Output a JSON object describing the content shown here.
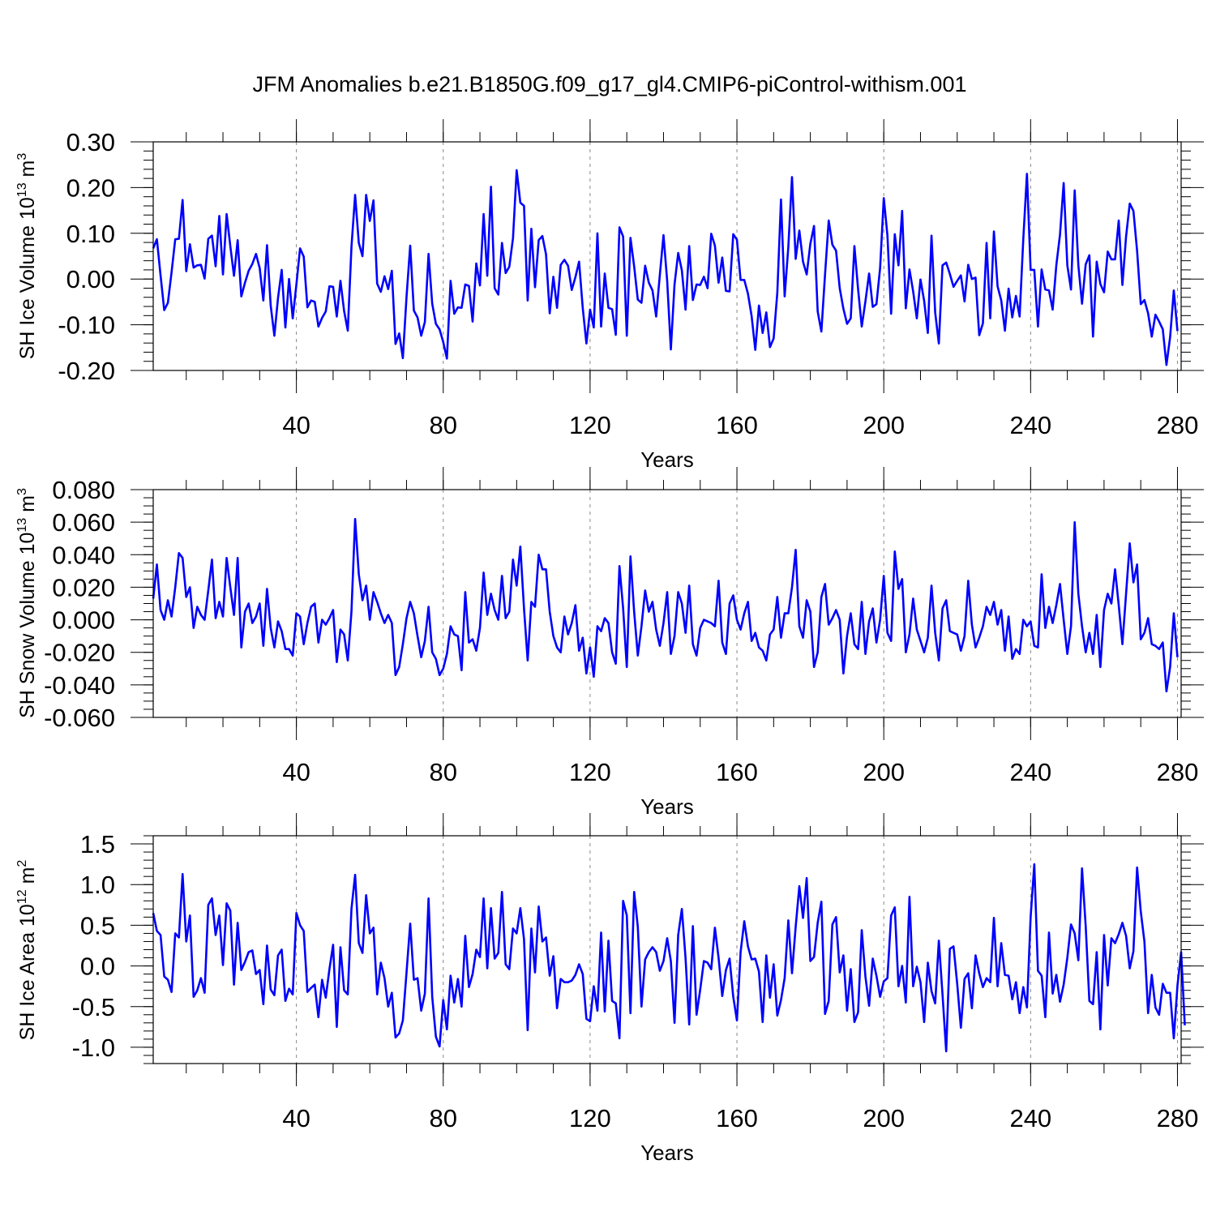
{
  "title": "JFM Anomalies b.e21.B1850G.f09_g17_gl4.CMIP6-piControl-withism.001",
  "colors": {
    "series": "#0000ff",
    "frame": "#000000",
    "grid": "#888888"
  },
  "chart_data": [
    {
      "type": "line",
      "ylabel": {
        "text": "SH Ice Volume 10",
        "exp": "13",
        "unit": " m",
        "unit_exp": "3"
      },
      "xlabel": "Years",
      "xlim": [
        1,
        281
      ],
      "ylim": [
        -0.2,
        0.3
      ],
      "xticks": [
        40,
        80,
        120,
        160,
        200,
        240,
        280
      ],
      "xtick_labels": [
        "40",
        "80",
        "120",
        "160",
        "200",
        "240",
        "280"
      ],
      "yticks": [
        -0.2,
        -0.1,
        0.0,
        0.1,
        0.2,
        0.3
      ],
      "ytick_labels": [
        "-0.20",
        "-0.10",
        "0.00",
        "0.10",
        "0.20",
        "0.30"
      ],
      "grid": "vertical dashed at major x ticks",
      "x_start": 1,
      "values": [
        0.067,
        0.087,
        0.008,
        -0.068,
        -0.052,
        0.015,
        0.087,
        0.088,
        0.173,
        0.017,
        0.076,
        0.025,
        0.03,
        0.031,
        0.001,
        0.088,
        0.095,
        0.028,
        0.138,
        0.01,
        0.142,
        0.072,
        0.007,
        0.085,
        -0.038,
        -0.008,
        0.018,
        0.033,
        0.055,
        0.024,
        -0.047,
        0.074,
        -0.058,
        -0.124,
        -0.041,
        0.02,
        -0.106,
        0.0,
        -0.086,
        -0.012,
        0.067,
        0.049,
        -0.062,
        -0.047,
        -0.05,
        -0.104,
        -0.085,
        -0.071,
        -0.016,
        -0.017,
        -0.082,
        -0.004,
        -0.07,
        -0.113,
        0.07,
        0.184,
        0.079,
        0.05,
        0.184,
        0.127,
        0.172,
        -0.01,
        -0.028,
        0.006,
        -0.022,
        0.018,
        -0.142,
        -0.119,
        -0.173,
        -0.039,
        0.073,
        -0.069,
        -0.084,
        -0.124,
        -0.094,
        0.055,
        -0.054,
        -0.098,
        -0.11,
        -0.138,
        -0.174,
        -0.004,
        -0.076,
        -0.062,
        -0.063,
        -0.012,
        -0.015,
        -0.093,
        0.034,
        -0.014,
        0.142,
        0.007,
        0.202,
        -0.02,
        -0.034,
        0.079,
        0.013,
        0.027,
        0.089,
        0.238,
        0.167,
        0.16,
        -0.047,
        0.11,
        -0.018,
        0.085,
        0.094,
        0.054,
        -0.075,
        0.005,
        -0.063,
        0.031,
        0.042,
        0.029,
        -0.024,
        0.004,
        0.038,
        -0.063,
        -0.141,
        -0.067,
        -0.106,
        0.1,
        -0.104,
        0.012,
        -0.063,
        -0.066,
        -0.122,
        0.113,
        0.093,
        -0.124,
        0.09,
        0.028,
        -0.045,
        -0.052,
        0.029,
        -0.008,
        -0.025,
        -0.082,
        0.009,
        0.096,
        -0.004,
        -0.154,
        -0.012,
        0.057,
        0.019,
        -0.067,
        0.072,
        -0.046,
        -0.012,
        -0.013,
        0.005,
        -0.02,
        0.099,
        0.073,
        -0.008,
        0.047,
        -0.026,
        -0.027,
        0.098,
        0.086,
        -0.002,
        -0.002,
        -0.032,
        -0.081,
        -0.155,
        -0.058,
        -0.118,
        -0.073,
        -0.149,
        -0.13,
        -0.03,
        0.174,
        -0.038,
        0.07,
        0.223,
        0.044,
        0.106,
        0.038,
        0.01,
        0.077,
        0.116,
        -0.071,
        -0.115,
        0.01,
        0.128,
        0.075,
        0.062,
        -0.02,
        -0.065,
        -0.098,
        -0.086,
        0.072,
        -0.022,
        -0.104,
        -0.049,
        0.012,
        -0.061,
        -0.055,
        0.024,
        0.177,
        0.095,
        -0.076,
        0.098,
        0.03,
        0.149,
        -0.064,
        0.021,
        -0.027,
        -0.086,
        -0.001,
        -0.048,
        -0.118,
        0.095,
        -0.073,
        -0.141,
        0.03,
        0.036,
        0.011,
        -0.017,
        -0.004,
        0.008,
        -0.049,
        0.031,
        0.0,
        0.003,
        -0.123,
        -0.097,
        0.079,
        -0.086,
        0.104,
        -0.016,
        -0.047,
        -0.113,
        -0.021,
        -0.084,
        -0.037,
        -0.082,
        0.087,
        0.23,
        0.02,
        0.02,
        -0.104,
        0.021,
        -0.023,
        -0.025,
        -0.067,
        0.03,
        0.097,
        0.21,
        0.03,
        -0.023,
        0.194,
        0.03,
        -0.054,
        0.032,
        0.052,
        -0.126,
        0.038,
        -0.011,
        -0.029,
        0.06,
        0.043,
        0.043,
        0.128,
        -0.013,
        0.093,
        0.165,
        0.149,
        0.062,
        -0.055,
        -0.046,
        -0.075,
        -0.126,
        -0.078,
        -0.093,
        -0.11,
        -0.188,
        -0.127,
        -0.025,
        -0.114
      ]
    },
    {
      "type": "line",
      "ylabel": {
        "text": "SH Snow Volume 10",
        "exp": "13",
        "unit": " m",
        "unit_exp": "3"
      },
      "xlabel": "Years",
      "xlim": [
        1,
        281
      ],
      "ylim": [
        -0.06,
        0.08
      ],
      "xticks": [
        40,
        80,
        120,
        160,
        200,
        240,
        280
      ],
      "xtick_labels": [
        "40",
        "80",
        "120",
        "160",
        "200",
        "240",
        "280"
      ],
      "yticks": [
        -0.06,
        -0.04,
        -0.02,
        0.0,
        0.02,
        0.04,
        0.06,
        0.08
      ],
      "ytick_labels": [
        "-0.060",
        "-0.040",
        "-0.020",
        "0.000",
        "0.020",
        "0.040",
        "0.060",
        "0.080"
      ],
      "grid": "vertical dashed at major x ticks",
      "x_start": 1,
      "values": [
        0.013,
        0.034,
        0.006,
        0.0,
        0.012,
        0.002,
        0.02,
        0.041,
        0.038,
        0.014,
        0.02,
        -0.005,
        0.008,
        0.003,
        0.0,
        0.018,
        0.037,
        0.001,
        0.011,
        0.002,
        0.038,
        0.02,
        0.003,
        0.038,
        -0.017,
        0.005,
        0.01,
        -0.002,
        0.002,
        0.01,
        -0.016,
        0.019,
        -0.005,
        -0.017,
        -0.001,
        -0.007,
        -0.018,
        -0.018,
        -0.022,
        0.004,
        0.002,
        -0.015,
        -0.002,
        0.008,
        0.01,
        -0.014,
        0.0,
        -0.003,
        0.001,
        0.006,
        -0.026,
        -0.006,
        -0.009,
        -0.025,
        0.005,
        0.062,
        0.028,
        0.012,
        0.021,
        0.0,
        0.017,
        0.011,
        0.004,
        -0.002,
        0.003,
        -0.002,
        -0.034,
        -0.029,
        -0.015,
        0.001,
        0.011,
        0.004,
        -0.01,
        -0.023,
        -0.013,
        0.008,
        -0.02,
        -0.024,
        -0.034,
        -0.03,
        -0.021,
        -0.004,
        -0.009,
        -0.01,
        -0.031,
        0.017,
        -0.014,
        -0.012,
        -0.019,
        -0.005,
        0.029,
        0.003,
        0.016,
        0.006,
        0.0,
        0.027,
        0.001,
        0.005,
        0.037,
        0.021,
        0.045,
        0.007,
        -0.025,
        0.011,
        0.008,
        0.04,
        0.031,
        0.031,
        0.005,
        -0.01,
        -0.017,
        -0.02,
        0.002,
        -0.009,
        -0.002,
        0.009,
        -0.019,
        -0.011,
        -0.033,
        -0.017,
        -0.035,
        -0.004,
        -0.007,
        0.001,
        -0.002,
        -0.02,
        -0.027,
        0.033,
        0.007,
        -0.029,
        0.039,
        0.005,
        -0.022,
        -0.004,
        0.018,
        0.005,
        0.011,
        -0.006,
        -0.016,
        -0.002,
        0.017,
        -0.021,
        -0.01,
        0.017,
        0.01,
        -0.008,
        0.021,
        -0.015,
        -0.022,
        -0.005,
        0.0,
        -0.001,
        -0.002,
        -0.004,
        0.024,
        -0.014,
        -0.021,
        0.01,
        0.015,
        0.0,
        -0.006,
        0.004,
        0.011,
        -0.013,
        -0.008,
        -0.017,
        -0.019,
        -0.025,
        -0.009,
        -0.006,
        0.014,
        -0.011,
        0.004,
        0.004,
        0.02,
        0.043,
        -0.004,
        -0.011,
        0.012,
        0.005,
        -0.029,
        -0.02,
        0.014,
        0.022,
        -0.003,
        0.001,
        0.006,
        0.0,
        -0.033,
        -0.01,
        0.004,
        -0.015,
        -0.018,
        0.011,
        -0.021,
        -0.001,
        0.007,
        -0.014,
        0.0,
        0.027,
        -0.008,
        -0.013,
        0.042,
        0.019,
        0.025,
        -0.02,
        -0.009,
        0.013,
        -0.006,
        -0.013,
        -0.02,
        -0.011,
        0.021,
        -0.008,
        -0.025,
        0.007,
        0.012,
        -0.007,
        -0.008,
        -0.009,
        -0.019,
        -0.01,
        0.024,
        -0.003,
        -0.017,
        -0.011,
        -0.004,
        0.008,
        0.003,
        0.011,
        -0.003,
        0.006,
        -0.019,
        0.002,
        -0.024,
        -0.018,
        -0.021,
        0.0,
        -0.004,
        -0.001,
        -0.016,
        -0.017,
        0.028,
        -0.005,
        0.008,
        -0.002,
        0.009,
        0.022,
        0.0,
        -0.021,
        -0.004,
        0.06,
        0.016,
        -0.004,
        -0.02,
        -0.008,
        -0.021,
        0.003,
        -0.029,
        0.006,
        0.016,
        0.01,
        0.031,
        0.009,
        -0.015,
        0.016,
        0.047,
        0.023,
        0.034,
        -0.012,
        -0.008,
        0.001,
        -0.015,
        -0.016,
        -0.018,
        -0.014,
        -0.044,
        -0.029,
        0.004,
        -0.023
      ]
    },
    {
      "type": "line",
      "ylabel": {
        "text": "SH Ice Area 10",
        "exp": "12",
        "unit": " m",
        "unit_exp": "2"
      },
      "xlabel": "Years",
      "xlim": [
        1,
        281
      ],
      "ylim": [
        -1.2,
        1.6
      ],
      "xticks": [
        40,
        80,
        120,
        160,
        200,
        240,
        280
      ],
      "xtick_labels": [
        "40",
        "80",
        "120",
        "160",
        "200",
        "240",
        "280"
      ],
      "yticks": [
        -1.0,
        -0.5,
        0.0,
        0.5,
        1.0,
        1.5
      ],
      "ytick_labels": [
        "-1.0",
        "-0.5",
        "0.0",
        "0.5",
        "1.0",
        "1.5"
      ],
      "grid": "vertical dashed at major x ticks",
      "x_start": 1,
      "values": [
        0.65,
        0.43,
        0.38,
        -0.13,
        -0.17,
        -0.32,
        0.4,
        0.35,
        1.13,
        0.3,
        0.62,
        -0.38,
        -0.3,
        -0.15,
        -0.33,
        0.75,
        0.83,
        0.38,
        0.62,
        0.01,
        0.77,
        0.68,
        -0.23,
        0.53,
        -0.05,
        0.05,
        0.17,
        0.19,
        -0.1,
        -0.05,
        -0.47,
        0.25,
        -0.29,
        -0.36,
        0.13,
        0.2,
        -0.43,
        -0.28,
        -0.35,
        0.65,
        0.5,
        0.43,
        -0.32,
        -0.27,
        -0.23,
        -0.63,
        -0.17,
        -0.39,
        -0.04,
        0.26,
        -0.75,
        0.23,
        -0.3,
        -0.35,
        0.7,
        1.12,
        0.28,
        0.16,
        0.87,
        0.4,
        0.47,
        -0.35,
        0.04,
        -0.15,
        -0.5,
        -0.33,
        -0.88,
        -0.83,
        -0.67,
        -0.08,
        0.52,
        -0.17,
        -0.15,
        -0.55,
        -0.34,
        0.83,
        -0.38,
        -0.87,
        -0.99,
        -0.42,
        -0.78,
        -0.12,
        -0.45,
        -0.16,
        -0.5,
        0.37,
        -0.26,
        -0.1,
        0.2,
        0.11,
        0.83,
        -0.03,
        0.71,
        0.09,
        0.16,
        0.91,
        0.02,
        -0.04,
        0.46,
        0.4,
        0.71,
        0.33,
        -0.79,
        0.46,
        -0.08,
        0.73,
        0.3,
        0.35,
        -0.12,
        0.12,
        -0.52,
        -0.16,
        -0.2,
        -0.2,
        -0.18,
        -0.11,
        0.02,
        -0.1,
        -0.65,
        -0.68,
        -0.25,
        -0.55,
        0.41,
        -0.56,
        0.31,
        -0.43,
        -0.46,
        -0.89,
        0.8,
        0.62,
        -0.58,
        0.91,
        0.48,
        -0.5,
        0.08,
        0.17,
        0.23,
        0.17,
        -0.06,
        0.06,
        0.34,
        0.06,
        -0.7,
        0.38,
        0.7,
        0.1,
        -0.72,
        0.49,
        -0.6,
        -0.29,
        0.06,
        0.04,
        -0.04,
        0.47,
        0.1,
        -0.37,
        -0.05,
        0.09,
        -0.38,
        -0.67,
        0.17,
        0.55,
        0.24,
        0.08,
        0.09,
        -0.07,
        -0.69,
        0.13,
        -0.39,
        0.02,
        -0.61,
        -0.42,
        -0.15,
        0.56,
        -0.09,
        0.48,
        0.98,
        0.59,
        1.08,
        0.06,
        0.11,
        0.53,
        0.79,
        -0.59,
        -0.43,
        0.51,
        0.6,
        -0.08,
        0.13,
        -0.55,
        -0.04,
        -0.69,
        -0.57,
        0.44,
        -0.13,
        -0.49,
        0.09,
        -0.12,
        -0.38,
        -0.19,
        -0.15,
        0.62,
        0.72,
        -0.25,
        0.0,
        -0.45,
        0.85,
        -0.25,
        -0.01,
        -0.2,
        -0.69,
        0.04,
        -0.31,
        -0.46,
        0.31,
        -0.35,
        -1.05,
        0.21,
        0.24,
        -0.22,
        -0.76,
        -0.16,
        -0.09,
        -0.52,
        0.13,
        -0.09,
        -0.26,
        -0.15,
        -0.2,
        0.59,
        -0.25,
        0.28,
        -0.11,
        -0.12,
        -0.41,
        -0.2,
        -0.58,
        -0.26,
        -0.51,
        0.6,
        1.25,
        -0.06,
        -0.12,
        -0.63,
        0.41,
        -0.34,
        -0.11,
        -0.44,
        -0.23,
        0.1,
        0.51,
        0.4,
        0.07,
        1.2,
        0.49,
        -0.43,
        -0.47,
        0.17,
        -0.78,
        0.38,
        -0.24,
        0.34,
        0.28,
        0.39,
        0.53,
        0.37,
        -0.03,
        0.18,
        1.21,
        0.67,
        0.3,
        -0.58,
        -0.11,
        -0.51,
        -0.6,
        -0.22,
        -0.33,
        -0.33,
        -0.89,
        -0.24,
        0.17,
        -0.73
      ]
    }
  ]
}
